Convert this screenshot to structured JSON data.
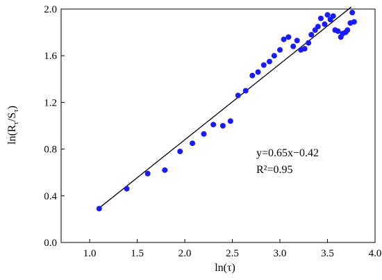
{
  "chart_data": {
    "type": "scatter",
    "xlabel": "ln(τ)",
    "ylabel_main": "ln(R",
    "ylabel_sub1": "τ",
    "ylabel_mid": "/S",
    "ylabel_sub2": "τ",
    "ylabel_end": ")",
    "xlim": [
      0.7,
      4.0
    ],
    "ylim": [
      0.0,
      2.0
    ],
    "xticks": [
      "1.0",
      "1.5",
      "2.0",
      "2.5",
      "3.0",
      "3.5",
      "4.0"
    ],
    "yticks": [
      "0.0",
      "0.4",
      "0.8",
      "1.2",
      "1.6",
      "2.0"
    ],
    "grid": false,
    "point_color": "#1a1aff",
    "line_color": "#000000",
    "fit": {
      "slope": 0.65,
      "intercept": -0.42,
      "x_start": 1.1,
      "x_end": 3.75
    },
    "annotations": [
      "y=0.65x−0.42",
      "R²=0.95"
    ],
    "points": [
      [
        1.1,
        0.29
      ],
      [
        1.39,
        0.46
      ],
      [
        1.61,
        0.59
      ],
      [
        1.79,
        0.62
      ],
      [
        1.95,
        0.78
      ],
      [
        2.08,
        0.85
      ],
      [
        2.2,
        0.93
      ],
      [
        2.3,
        1.01
      ],
      [
        2.4,
        1.0
      ],
      [
        2.48,
        1.04
      ],
      [
        2.56,
        1.26
      ],
      [
        2.64,
        1.3
      ],
      [
        2.71,
        1.43
      ],
      [
        2.77,
        1.46
      ],
      [
        2.83,
        1.52
      ],
      [
        2.89,
        1.55
      ],
      [
        2.94,
        1.6
      ],
      [
        3.0,
        1.65
      ],
      [
        3.04,
        1.74
      ],
      [
        3.09,
        1.76
      ],
      [
        3.14,
        1.68
      ],
      [
        3.18,
        1.73
      ],
      [
        3.22,
        1.65
      ],
      [
        3.26,
        1.66
      ],
      [
        3.3,
        1.71
      ],
      [
        3.33,
        1.78
      ],
      [
        3.37,
        1.82
      ],
      [
        3.4,
        1.85
      ],
      [
        3.43,
        1.92
      ],
      [
        3.47,
        1.87
      ],
      [
        3.5,
        1.95
      ],
      [
        3.53,
        1.91
      ],
      [
        3.56,
        1.94
      ],
      [
        3.58,
        1.82
      ],
      [
        3.61,
        1.81
      ],
      [
        3.64,
        1.76
      ],
      [
        3.66,
        1.79
      ],
      [
        3.69,
        1.8
      ],
      [
        3.71,
        1.82
      ],
      [
        3.74,
        1.88
      ],
      [
        3.76,
        1.97
      ],
      [
        3.78,
        1.89
      ]
    ]
  }
}
